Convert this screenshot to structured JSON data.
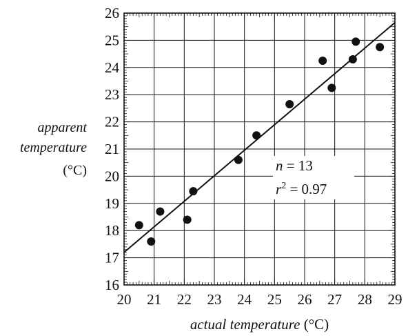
{
  "chart_data": {
    "type": "scatter",
    "xlabel_main": "actual temperature",
    "xlabel_unit": "(°C)",
    "ylabel_lines": [
      "apparent",
      "temperature",
      "(°C)"
    ],
    "xlim": [
      20,
      29
    ],
    "ylim": [
      16,
      26
    ],
    "xticks": [
      20,
      21,
      22,
      23,
      24,
      25,
      26,
      27,
      28,
      29
    ],
    "yticks": [
      16,
      17,
      18,
      19,
      20,
      21,
      22,
      23,
      24,
      25,
      26
    ],
    "grid": true,
    "points": [
      {
        "x": 20.5,
        "y": 18.2
      },
      {
        "x": 20.9,
        "y": 17.6
      },
      {
        "x": 21.2,
        "y": 18.7
      },
      {
        "x": 22.1,
        "y": 18.4
      },
      {
        "x": 22.3,
        "y": 19.45
      },
      {
        "x": 23.8,
        "y": 20.6
      },
      {
        "x": 24.4,
        "y": 21.5
      },
      {
        "x": 25.5,
        "y": 22.65
      },
      {
        "x": 26.6,
        "y": 24.25
      },
      {
        "x": 26.9,
        "y": 23.25
      },
      {
        "x": 27.6,
        "y": 24.3
      },
      {
        "x": 27.7,
        "y": 24.95
      },
      {
        "x": 28.5,
        "y": 24.75
      }
    ],
    "trendline": {
      "x0": 20,
      "y0": 17.2,
      "x1": 29,
      "y1": 25.65
    },
    "annotation": {
      "n_label": "n",
      "n_value": "= 13",
      "r_label": "r",
      "r_exp": "2",
      "r_value": "= 0.97"
    }
  }
}
